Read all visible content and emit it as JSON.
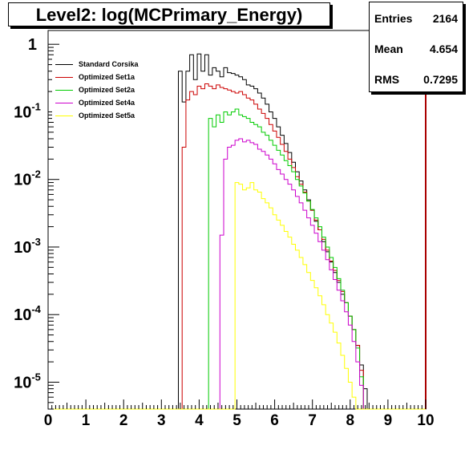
{
  "chart_data": {
    "type": "line",
    "title": "Level2:  log(MCPrimary_Energy)",
    "stats": {
      "entries_label": "Entries",
      "entries_value": "2164",
      "mean_label": "Mean",
      "mean_value": "4.654",
      "rms_label": "RMS",
      "rms_value": "0.7295"
    },
    "xlim": [
      0,
      10
    ],
    "ylim": [
      4e-06,
      1.6
    ],
    "ylog": true,
    "xticks": [
      "0",
      "1",
      "2",
      "3",
      "4",
      "5",
      "6",
      "7",
      "8",
      "9",
      "10"
    ],
    "yticks": [
      {
        "value": 1,
        "base": "1",
        "exp": ""
      },
      {
        "value": 0.1,
        "base": "10",
        "exp": "-1"
      },
      {
        "value": 0.01,
        "base": "10",
        "exp": "-2"
      },
      {
        "value": 0.001,
        "base": "10",
        "exp": "-3"
      },
      {
        "value": 0.0001,
        "base": "10",
        "exp": "-4"
      },
      {
        "value": 1e-05,
        "base": "10",
        "exp": "-5"
      }
    ],
    "legend_position": "top-left",
    "series": [
      {
        "name": "Standard Corsika",
        "color": "#000000",
        "points": [
          [
            3.5,
            0.4
          ],
          [
            3.6,
            0.14
          ],
          [
            3.7,
            0.4
          ],
          [
            3.8,
            0.7
          ],
          [
            3.9,
            0.3
          ],
          [
            4.0,
            0.72
          ],
          [
            4.1,
            0.4
          ],
          [
            4.2,
            0.7
          ],
          [
            4.3,
            0.35
          ],
          [
            4.4,
            0.45
          ],
          [
            4.5,
            0.4
          ],
          [
            4.6,
            0.33
          ],
          [
            4.7,
            0.45
          ],
          [
            4.8,
            0.38
          ],
          [
            4.9,
            0.37
          ],
          [
            5.0,
            0.35
          ],
          [
            5.1,
            0.33
          ],
          [
            5.2,
            0.3
          ],
          [
            5.3,
            0.25
          ],
          [
            5.4,
            0.24
          ],
          [
            5.5,
            0.22
          ],
          [
            5.6,
            0.19
          ],
          [
            5.7,
            0.16
          ],
          [
            5.8,
            0.13
          ],
          [
            5.9,
            0.1
          ],
          [
            6.0,
            0.08
          ],
          [
            6.1,
            0.06
          ],
          [
            6.2,
            0.045
          ],
          [
            6.3,
            0.034
          ],
          [
            6.4,
            0.025
          ],
          [
            6.5,
            0.018
          ],
          [
            6.6,
            0.013
          ],
          [
            6.7,
            0.0095
          ],
          [
            6.8,
            0.007
          ],
          [
            6.9,
            0.005
          ],
          [
            7.0,
            0.0035
          ],
          [
            7.1,
            0.0024
          ],
          [
            7.2,
            0.0018
          ],
          [
            7.3,
            0.0012
          ],
          [
            7.4,
            0.00085
          ],
          [
            7.5,
            0.0006
          ],
          [
            7.6,
            0.00042
          ],
          [
            7.7,
            0.0003
          ],
          [
            7.8,
            0.0002
          ],
          [
            7.9,
            0.00015
          ],
          [
            8.0,
            9.5e-05
          ],
          [
            8.1,
            6e-05
          ],
          [
            8.2,
            3.5e-05
          ],
          [
            8.3,
            1.8e-05
          ],
          [
            8.4,
            8e-06
          ]
        ]
      },
      {
        "name": "Optimized Set1a",
        "color": "#cc0000",
        "points": [
          [
            3.6,
            0.03
          ],
          [
            3.7,
            0.15
          ],
          [
            3.8,
            0.2
          ],
          [
            3.9,
            0.18
          ],
          [
            4.0,
            0.24
          ],
          [
            4.1,
            0.22
          ],
          [
            4.2,
            0.26
          ],
          [
            4.3,
            0.24
          ],
          [
            4.4,
            0.22
          ],
          [
            4.5,
            0.25
          ],
          [
            4.6,
            0.23
          ],
          [
            4.7,
            0.22
          ],
          [
            4.8,
            0.21
          ],
          [
            4.9,
            0.2
          ],
          [
            5.0,
            0.19
          ],
          [
            5.1,
            0.2
          ],
          [
            5.2,
            0.18
          ],
          [
            5.3,
            0.16
          ],
          [
            5.4,
            0.15
          ],
          [
            5.5,
            0.13
          ],
          [
            5.6,
            0.11
          ],
          [
            5.7,
            0.095
          ],
          [
            5.8,
            0.08
          ],
          [
            5.9,
            0.065
          ],
          [
            6.0,
            0.052
          ],
          [
            6.1,
            0.042
          ],
          [
            6.2,
            0.033
          ],
          [
            6.3,
            0.026
          ],
          [
            6.4,
            0.02
          ],
          [
            6.5,
            0.015
          ],
          [
            6.6,
            0.011
          ],
          [
            6.7,
            0.0085
          ],
          [
            6.8,
            0.0065
          ],
          [
            6.9,
            0.0048
          ],
          [
            7.0,
            0.0035
          ],
          [
            7.1,
            0.0025
          ],
          [
            7.2,
            0.0018
          ],
          [
            7.3,
            0.0013
          ],
          [
            7.4,
            0.0009
          ],
          [
            7.5,
            0.00062
          ],
          [
            7.6,
            0.00045
          ],
          [
            7.7,
            0.00032
          ],
          [
            7.8,
            0.00022
          ],
          [
            7.9,
            0.00015
          ],
          [
            8.0,
            9.5e-05
          ],
          [
            8.1,
            6e-05
          ],
          [
            8.2,
            3.5e-05
          ],
          [
            8.3,
            1.5e-05
          ]
        ]
      },
      {
        "name": "Optimized Set2a",
        "color": "#00cc00",
        "points": [
          [
            4.3,
            0.08
          ],
          [
            4.4,
            0.06
          ],
          [
            4.5,
            0.09
          ],
          [
            4.6,
            0.07
          ],
          [
            4.7,
            0.1
          ],
          [
            4.8,
            0.09
          ],
          [
            4.9,
            0.1
          ],
          [
            5.0,
            0.11
          ],
          [
            5.1,
            0.09
          ],
          [
            5.2,
            0.085
          ],
          [
            5.3,
            0.08
          ],
          [
            5.4,
            0.07
          ],
          [
            5.5,
            0.065
          ],
          [
            5.6,
            0.06
          ],
          [
            5.7,
            0.05
          ],
          [
            5.8,
            0.045
          ],
          [
            5.9,
            0.038
          ],
          [
            6.0,
            0.032
          ],
          [
            6.1,
            0.027
          ],
          [
            6.2,
            0.023
          ],
          [
            6.3,
            0.019
          ],
          [
            6.4,
            0.016
          ],
          [
            6.5,
            0.013
          ],
          [
            6.6,
            0.01
          ],
          [
            6.7,
            0.008
          ],
          [
            6.8,
            0.0063
          ],
          [
            6.9,
            0.0048
          ],
          [
            7.0,
            0.0036
          ],
          [
            7.1,
            0.0027
          ],
          [
            7.2,
            0.002
          ],
          [
            7.3,
            0.0014
          ],
          [
            7.4,
            0.001
          ],
          [
            7.5,
            0.0007
          ],
          [
            7.6,
            0.0005
          ],
          [
            7.7,
            0.00034
          ],
          [
            7.8,
            0.00023
          ],
          [
            7.9,
            0.00015
          ],
          [
            8.0,
            9.5e-05
          ],
          [
            8.1,
            6e-05
          ],
          [
            8.2,
            3.2e-05
          ],
          [
            8.3,
            1.2e-05
          ]
        ]
      },
      {
        "name": "Optimized Set4a",
        "color": "#cc00cc",
        "points": [
          [
            4.6,
            0.0015
          ],
          [
            4.7,
            0.02
          ],
          [
            4.8,
            0.03
          ],
          [
            4.9,
            0.032
          ],
          [
            5.0,
            0.038
          ],
          [
            5.1,
            0.04
          ],
          [
            5.2,
            0.036
          ],
          [
            5.3,
            0.038
          ],
          [
            5.4,
            0.035
          ],
          [
            5.5,
            0.033
          ],
          [
            5.6,
            0.028
          ],
          [
            5.7,
            0.026
          ],
          [
            5.8,
            0.023
          ],
          [
            5.9,
            0.02
          ],
          [
            6.0,
            0.017
          ],
          [
            6.1,
            0.014
          ],
          [
            6.2,
            0.012
          ],
          [
            6.3,
            0.01
          ],
          [
            6.4,
            0.0085
          ],
          [
            6.5,
            0.007
          ],
          [
            6.6,
            0.0056
          ],
          [
            6.7,
            0.0045
          ],
          [
            6.8,
            0.0035
          ],
          [
            6.9,
            0.0027
          ],
          [
            7.0,
            0.0021
          ],
          [
            7.1,
            0.0016
          ],
          [
            7.2,
            0.0012
          ],
          [
            7.3,
            0.0009
          ],
          [
            7.4,
            0.00065
          ],
          [
            7.5,
            0.00046
          ],
          [
            7.6,
            0.00033
          ],
          [
            7.7,
            0.00023
          ],
          [
            7.8,
            0.00016
          ],
          [
            7.9,
            0.00011
          ],
          [
            8.0,
            7e-05
          ],
          [
            8.1,
            4e-05
          ],
          [
            8.2,
            2e-05
          ],
          [
            8.3,
            9e-06
          ]
        ]
      },
      {
        "name": "Optimized Set5a",
        "color": "#ffff00",
        "points": [
          [
            5.0,
            0.009
          ],
          [
            5.1,
            0.0085
          ],
          [
            5.2,
            0.007
          ],
          [
            5.3,
            0.0075
          ],
          [
            5.4,
            0.009
          ],
          [
            5.5,
            0.007
          ],
          [
            5.6,
            0.0065
          ],
          [
            5.7,
            0.0052
          ],
          [
            5.8,
            0.0045
          ],
          [
            5.9,
            0.0038
          ],
          [
            6.0,
            0.003
          ],
          [
            6.1,
            0.0025
          ],
          [
            6.2,
            0.0021
          ],
          [
            6.3,
            0.0017
          ],
          [
            6.4,
            0.0014
          ],
          [
            6.5,
            0.0011
          ],
          [
            6.6,
            0.0009
          ],
          [
            6.7,
            0.0007
          ],
          [
            6.8,
            0.00055
          ],
          [
            6.9,
            0.00042
          ],
          [
            7.0,
            0.00032
          ],
          [
            7.1,
            0.00025
          ],
          [
            7.2,
            0.00019
          ],
          [
            7.3,
            0.00014
          ],
          [
            7.4,
            0.0001
          ],
          [
            7.5,
            7.5e-05
          ],
          [
            7.6,
            5.5e-05
          ],
          [
            7.7,
            3.8e-05
          ],
          [
            7.8,
            2.5e-05
          ],
          [
            7.9,
            1.6e-05
          ],
          [
            8.0,
            1e-05
          ],
          [
            8.1,
            6e-06
          ]
        ]
      }
    ]
  }
}
